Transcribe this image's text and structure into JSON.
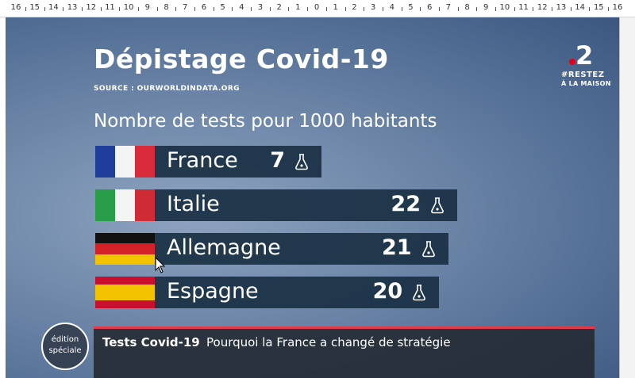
{
  "ruler": {
    "labels": [
      "16",
      "15",
      "14",
      "13",
      "12",
      "11",
      "10",
      "9",
      "8",
      "7",
      "6",
      "5",
      "4",
      "3",
      "2",
      "1",
      "0",
      "1",
      "2",
      "3",
      "4",
      "5",
      "6",
      "7",
      "8",
      "9",
      "10",
      "11",
      "12",
      "13",
      "14",
      "15",
      "16"
    ]
  },
  "header": {
    "title": "Dépistage Covid-19",
    "source": "SOURCE : OURWORLDINDATA.ORG",
    "subtitle": "Nombre de tests pour 1000 habitants"
  },
  "logo": {
    "number": "2",
    "line1": "#RESTEZ",
    "line2": "À LA MAISON",
    "accent_color": "#e2001a"
  },
  "chart_data": {
    "type": "bar",
    "orientation": "horizontal",
    "title": "Nombre de tests pour 1000 habitants",
    "categories": [
      "France",
      "Italie",
      "Allemagne",
      "Espagne"
    ],
    "values": [
      7,
      22,
      21,
      20
    ],
    "xlim": [
      0,
      22
    ],
    "bar_color": "#1a3045",
    "value_icon": "flask-icon",
    "flags": [
      "flag-france-icon",
      "flag-italy-icon",
      "flag-germany-icon",
      "flag-spain-icon"
    ]
  },
  "ticker": {
    "title": "Tests Covid-19",
    "text": "Pourquoi la France a changé de stratégie",
    "accent_color": "#e23a4a"
  },
  "badge": {
    "line1": "édition",
    "line2": "spéciale"
  }
}
